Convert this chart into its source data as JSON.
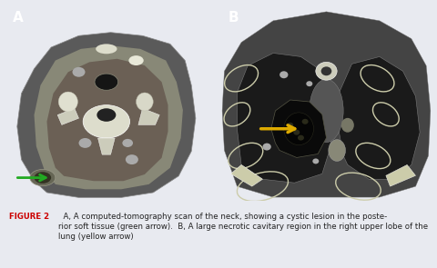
{
  "figure_background": "#e8eaf0",
  "panel_border_color": "#b0b8cc",
  "image_area_bg": "#1a1a1a",
  "panel_a_label": "A",
  "panel_b_label": "B",
  "label_color": "#ffffff",
  "label_fontsize": 11,
  "label_fontweight": "bold",
  "caption_bold_prefix": "FIGURE 2",
  "caption_text_a": " A,",
  "caption_body_a": " A computed-tomography scan of the neck, showing a cystic lesion in the poste-\nrior soft tissue (green arrow).",
  "caption_text_b": " B,",
  "caption_body_b": " A large necrotic cavitary region in the right upper lobe of the\nlung (yellow arrow)",
  "caption_fontsize": 6.2,
  "caption_color": "#222222",
  "caption_bold_color": "#cc0000",
  "green_arrow_color": "#22aa22",
  "yellow_arrow_color": "#ddaa00",
  "fig_width": 4.8,
  "fig_height": 2.95,
  "dpi": 100
}
